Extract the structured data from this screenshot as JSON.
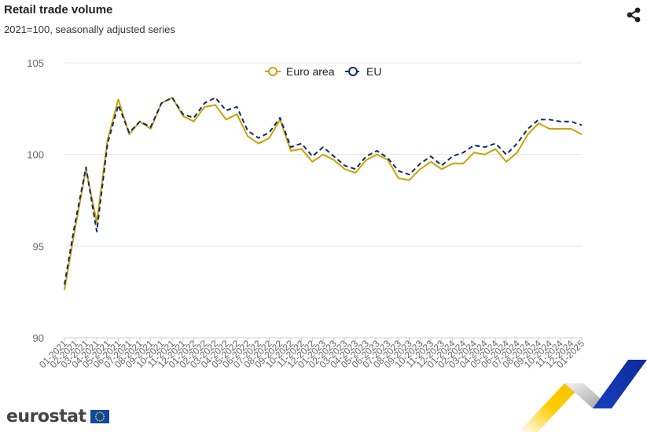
{
  "header": {
    "title": "Retail trade volume",
    "subtitle": "2021=100, seasonally adjusted series",
    "share_icon": "share-icon"
  },
  "branding": {
    "logo_text": "eurostat"
  },
  "colors": {
    "euro_area": "#c8a400",
    "eu": "#0e2a6b",
    "grid": "#e6e6e6",
    "axis_text": "#666666"
  },
  "chart_data": {
    "type": "line",
    "title": "Retail trade volume",
    "subtitle": "2021=100, seasonally adjusted series",
    "xlabel": "",
    "ylabel": "",
    "ylim": [
      90,
      105
    ],
    "yticks": [
      90,
      95,
      100,
      105
    ],
    "grid": true,
    "legend": "top-center",
    "x": [
      "01-2021",
      "02-2021",
      "03-2021",
      "04-2021",
      "05-2021",
      "06-2021",
      "07-2021",
      "08-2021",
      "09-2021",
      "10-2021",
      "11-2021",
      "12-2021",
      "01-2022",
      "02-2022",
      "03-2022",
      "04-2022",
      "05-2022",
      "06-2022",
      "07-2022",
      "08-2022",
      "09-2022",
      "10-2022",
      "11-2022",
      "12-2022",
      "01-2023",
      "02-2023",
      "03-2023",
      "04-2023",
      "05-2023",
      "06-2023",
      "07-2023",
      "08-2023",
      "09-2023",
      "10-2023",
      "11-2023",
      "12-2023",
      "01-2024",
      "02-2024",
      "03-2024",
      "04-2024",
      "05-2024",
      "06-2024",
      "07-2024",
      "08-2024",
      "09-2024",
      "10-2024",
      "11-2024",
      "12-2024",
      "01-2025"
    ],
    "series": [
      {
        "name": "Euro area",
        "color": "#c8a400",
        "dash": false,
        "values": [
          92.6,
          96.0,
          99.2,
          96.3,
          100.8,
          103.0,
          101.1,
          101.8,
          101.4,
          102.8,
          103.1,
          102.1,
          101.8,
          102.6,
          102.7,
          101.9,
          102.2,
          101.0,
          100.6,
          100.9,
          101.9,
          100.2,
          100.3,
          99.6,
          100.0,
          99.7,
          99.2,
          99.0,
          99.7,
          100.0,
          99.7,
          98.7,
          98.6,
          99.2,
          99.6,
          99.2,
          99.5,
          99.5,
          100.1,
          100.0,
          100.3,
          99.6,
          100.1,
          101.1,
          101.7,
          101.4,
          101.4,
          101.4,
          101.1
        ]
      },
      {
        "name": "EU",
        "color": "#0e2a6b",
        "dash": true,
        "values": [
          92.9,
          96.3,
          99.3,
          95.8,
          100.6,
          102.7,
          101.2,
          101.8,
          101.5,
          102.8,
          103.1,
          102.2,
          102.0,
          102.8,
          103.1,
          102.4,
          102.6,
          101.3,
          100.9,
          101.2,
          102.0,
          100.4,
          100.6,
          99.9,
          100.4,
          99.9,
          99.4,
          99.2,
          99.9,
          100.2,
          99.8,
          99.1,
          98.9,
          99.5,
          99.9,
          99.4,
          99.9,
          100.1,
          100.5,
          100.4,
          100.6,
          100.0,
          100.6,
          101.4,
          101.9,
          101.9,
          101.8,
          101.8,
          101.6
        ]
      }
    ]
  }
}
